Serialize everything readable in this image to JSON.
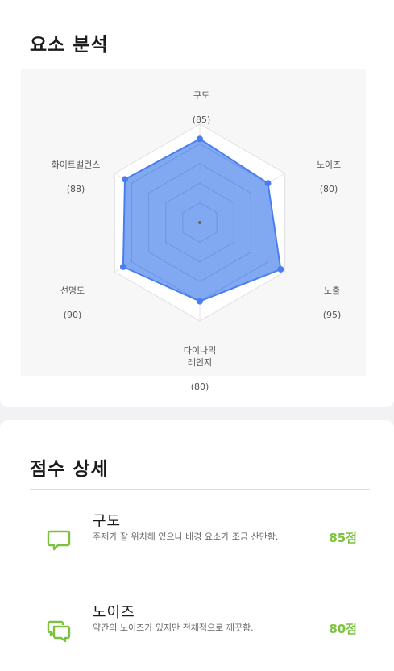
{
  "analysis": {
    "title": "요소 분석"
  },
  "chart_data": {
    "type": "radar",
    "axes": [
      "구도",
      "노이즈",
      "노출",
      "다이나믹 레인지",
      "선명도",
      "화이트밸런스"
    ],
    "values": [
      85,
      80,
      95,
      80,
      90,
      88
    ],
    "range": [
      0,
      100
    ],
    "rings": 5,
    "fill_color": "#6b9af0",
    "stroke_color": "#4a7ef0"
  },
  "radar_labels": [
    {
      "name": "구도",
      "value": "(85)"
    },
    {
      "name": "노이즈",
      "value": "(80)"
    },
    {
      "name": "노출",
      "value": "(95)"
    },
    {
      "name": "다이나믹\n레인지",
      "value": "(80)"
    },
    {
      "name": "선명도",
      "value": "(90)"
    },
    {
      "name": "화이트밸런스",
      "value": "(88)"
    }
  ],
  "scores": {
    "title": "점수 상세",
    "items": [
      {
        "title": "구도",
        "description": "주제가 잘 위치해 있으나 배경 요소가 조금 산만함.",
        "score": "85점",
        "icon": "chat-bubble-icon"
      },
      {
        "title": "노이즈",
        "description": "약간의 노이즈가 있지만 전체적으로 깨끗함.",
        "score": "80점",
        "icon": "chat-bubbles-icon"
      }
    ]
  },
  "colors": {
    "accent_green": "#7cc23f",
    "radar_fill": "#6b9af0"
  }
}
